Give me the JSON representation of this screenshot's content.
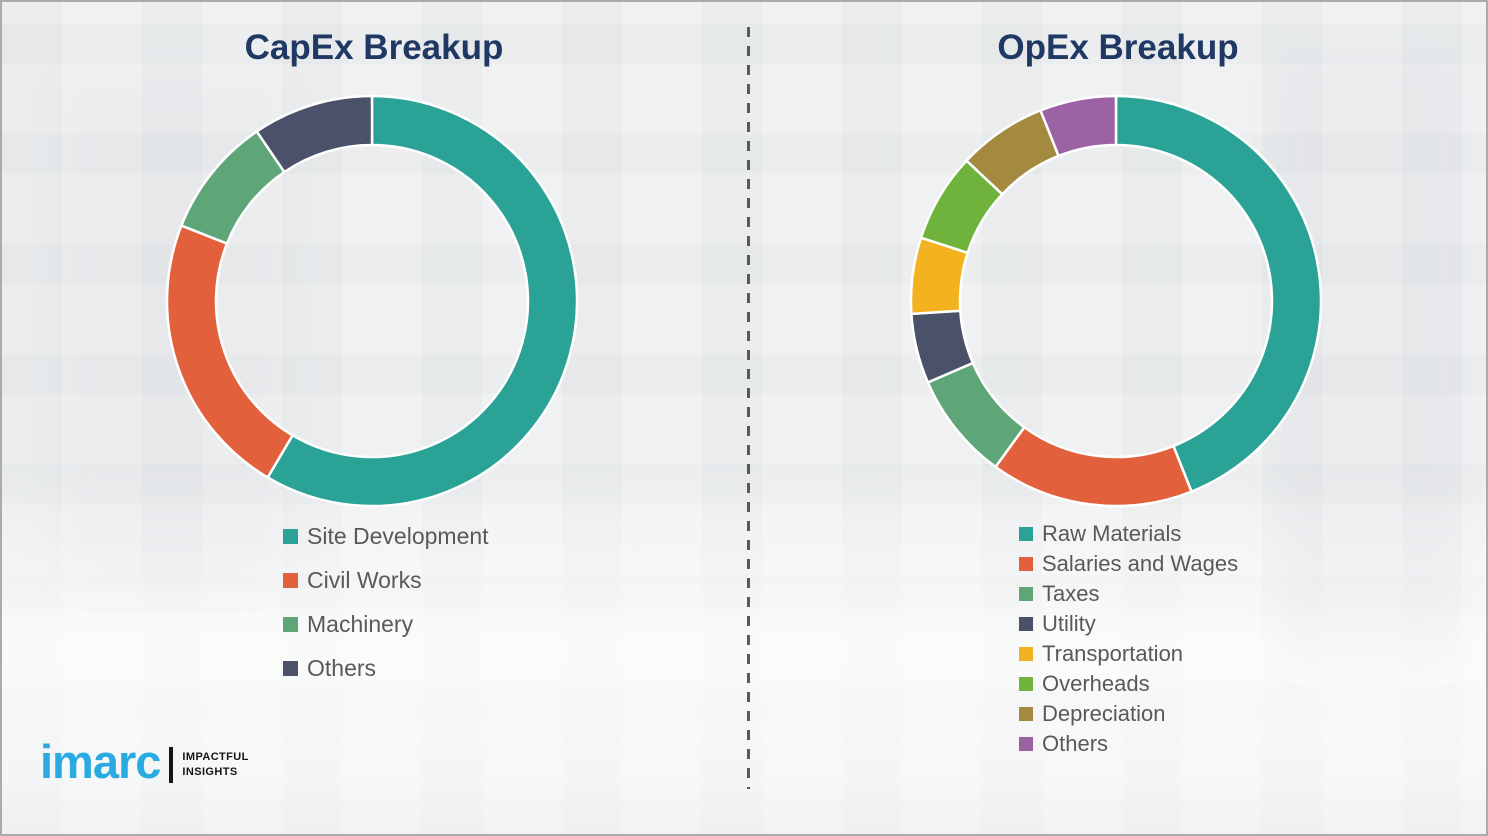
{
  "page": {
    "background_color": "#eff1f2",
    "border_color": "#ababab",
    "divider_color": "#595959",
    "title_color": "#1f3864",
    "legend_text_color": "#595959"
  },
  "chart_data": [
    {
      "type": "pie",
      "variant": "donut",
      "title": "CapEx Breakup",
      "labels": [
        "Site Development",
        "Civil Works",
        "Machinery",
        "Others"
      ],
      "values": [
        58.5,
        22.5,
        9.5,
        9.5
      ],
      "colors": [
        "#2aa396",
        "#e2613c",
        "#5ea578",
        "#4a5168"
      ],
      "start_angle_deg": 0,
      "direction": "clockwise",
      "legend_position": "below-left",
      "outer_radius": 205,
      "inner_radius": 156
    },
    {
      "type": "pie",
      "variant": "donut",
      "title": "OpEx Breakup",
      "labels": [
        "Raw Materials",
        "Salaries and Wages",
        "Taxes",
        "Utility",
        "Transportation",
        "Overheads",
        "Depreciation",
        "Others"
      ],
      "values": [
        44,
        16,
        8.5,
        5.5,
        6,
        7,
        7,
        6
      ],
      "colors": [
        "#2aa396",
        "#e2613c",
        "#5ea578",
        "#4a5168",
        "#f3b320",
        "#6fb33d",
        "#a48a3e",
        "#9c63a4"
      ],
      "start_angle_deg": 0,
      "direction": "clockwise",
      "legend_position": "below-left",
      "outer_radius": 205,
      "inner_radius": 156
    }
  ],
  "logo": {
    "brand": "imarc",
    "brand_color": "#29abe2",
    "tagline_line1": "IMPACTFUL",
    "tagline_line2": "INSIGHTS"
  }
}
